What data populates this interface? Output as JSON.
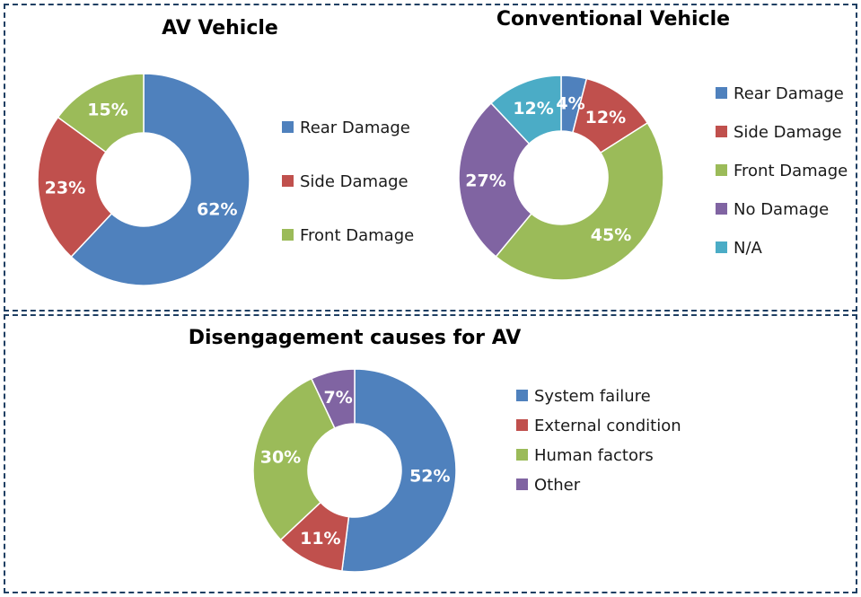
{
  "colors": {
    "blue": "#4F81BD",
    "red": "#C0504D",
    "green": "#9BBB59",
    "purple": "#8064A2",
    "cyan": "#4BACC6"
  },
  "chart_data": [
    {
      "type": "pie",
      "title": "AV Vehicle",
      "categories": [
        "Rear Damage",
        "Side Damage",
        "Front Damage"
      ],
      "values": [
        62,
        23,
        15
      ],
      "labels": [
        "62%",
        "23%",
        "15%"
      ],
      "colors": [
        "#4F81BD",
        "#C0504D",
        "#9BBB59"
      ],
      "legend": "right"
    },
    {
      "type": "pie",
      "title": "Conventional Vehicle",
      "categories": [
        "Rear Damage",
        "Side Damage",
        "Front Damage",
        "No Damage",
        "N/A"
      ],
      "values": [
        4,
        12,
        45,
        27,
        12
      ],
      "labels": [
        "4%",
        "12%",
        "45%",
        "27%",
        "12%"
      ],
      "colors": [
        "#4F81BD",
        "#C0504D",
        "#9BBB59",
        "#8064A2",
        "#4BACC6"
      ],
      "legend": "right"
    },
    {
      "type": "pie",
      "title": "Disengagement causes for AV",
      "categories": [
        "System failure",
        "External condition",
        "Human factors",
        "Other"
      ],
      "values": [
        52,
        11,
        30,
        7
      ],
      "labels": [
        "52%",
        "11%",
        "30%",
        "7%"
      ],
      "colors": [
        "#4F81BD",
        "#C0504D",
        "#9BBB59",
        "#8064A2"
      ],
      "legend": "right"
    }
  ]
}
